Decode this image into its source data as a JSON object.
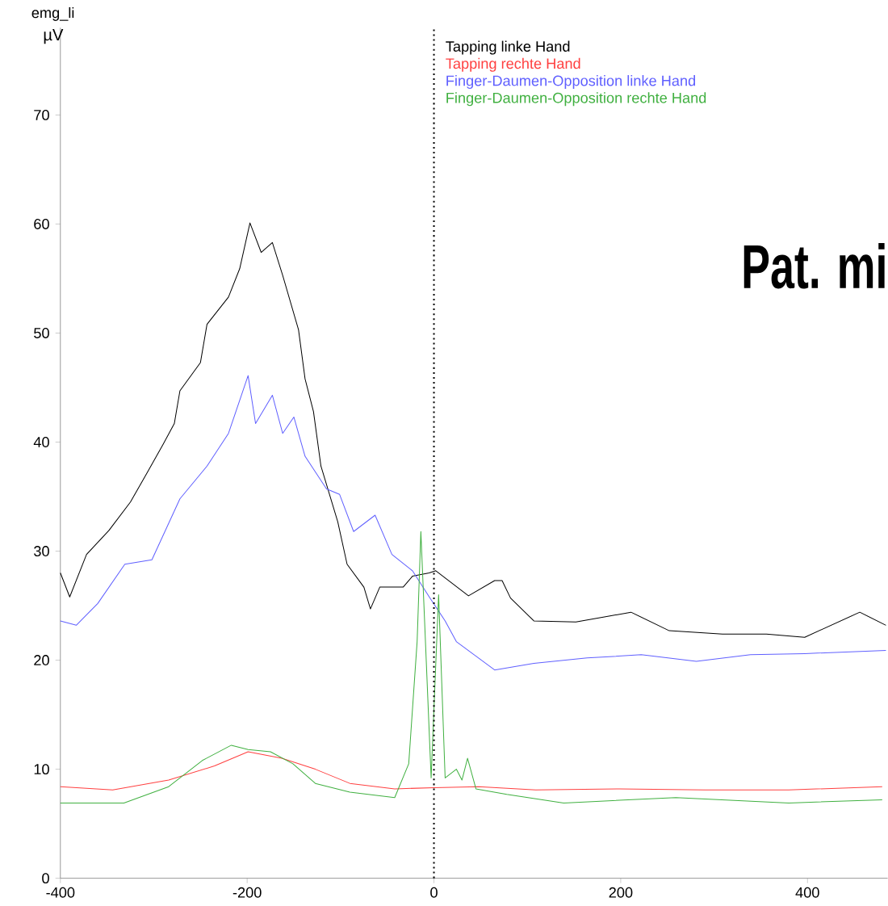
{
  "chart_data": {
    "type": "line",
    "title": "emg_li",
    "ylabel": "µV",
    "xlim": [
      -400,
      486
    ],
    "ylim": [
      0,
      78
    ],
    "xticks": [
      -400,
      -200,
      0,
      200,
      400
    ],
    "yticks": [
      0,
      10,
      20,
      30,
      40,
      50,
      60,
      70
    ],
    "grid": false,
    "legend": "top",
    "marker": "none",
    "line_style": "solid",
    "ref_lines": [
      {
        "axis": "x",
        "value": 0,
        "color": "#000000",
        "line_style": "dotted"
      }
    ],
    "annotations": [
      "Pat. mi"
    ],
    "series": [
      {
        "name": "Tapping linke Hand",
        "color": "#000000",
        "x": [
          -400,
          -390,
          -372,
          -348,
          -325,
          -307,
          -290,
          -278,
          -272,
          -250,
          -243,
          -220,
          -208,
          -197,
          -185,
          -173,
          -162,
          -145,
          -138,
          -129,
          -121,
          -103,
          -93,
          -75,
          -68,
          -58,
          -33,
          -23,
          -5,
          2,
          37,
          65,
          73,
          82,
          107,
          152,
          211,
          252,
          309,
          356,
          397,
          456,
          484
        ],
        "values": [
          28.0,
          25.8,
          29.7,
          31.9,
          34.5,
          37.2,
          39.8,
          41.7,
          44.7,
          47.3,
          50.8,
          53.3,
          55.9,
          60.1,
          57.4,
          58.3,
          55.3,
          50.3,
          45.8,
          42.8,
          37.8,
          32.7,
          28.8,
          26.7,
          24.7,
          26.7,
          26.7,
          27.7,
          28.0,
          28.2,
          25.9,
          27.3,
          27.3,
          25.7,
          23.6,
          23.5,
          24.4,
          22.7,
          22.4,
          22.4,
          22.1,
          24.4,
          23.2
        ]
      },
      {
        "name": "Tapping rechte Hand",
        "color": "#ff4040",
        "x": [
          -400,
          -344,
          -284,
          -235,
          -199,
          -163,
          -127,
          -90,
          -42,
          0,
          48,
          109,
          199,
          290,
          380,
          480
        ],
        "values": [
          8.4,
          8.1,
          9.0,
          10.3,
          11.6,
          11.0,
          10.0,
          8.7,
          8.2,
          8.3,
          8.4,
          8.1,
          8.2,
          8.1,
          8.1,
          8.4
        ]
      },
      {
        "name": "Finger-Daumen-Opposition linke Hand",
        "color": "#6060ff",
        "x": [
          -400,
          -383,
          -360,
          -331,
          -302,
          -272,
          -243,
          -220,
          -199,
          -191,
          -173,
          -162,
          -150,
          -138,
          -115,
          -101,
          -86,
          -63,
          -45,
          -23,
          -5,
          12,
          24,
          65,
          107,
          164,
          222,
          281,
          339,
          397,
          484
        ],
        "values": [
          23.6,
          23.2,
          25.2,
          28.8,
          29.2,
          34.8,
          37.8,
          40.8,
          46.1,
          41.7,
          44.3,
          40.8,
          42.3,
          38.7,
          35.7,
          35.2,
          31.8,
          33.3,
          29.7,
          28.2,
          25.8,
          23.6,
          21.7,
          19.1,
          19.7,
          20.2,
          20.5,
          19.9,
          20.5,
          20.6,
          20.9
        ]
      },
      {
        "name": "Finger-Daumen-Opposition rechte Hand",
        "color": "#40b040",
        "x": [
          -400,
          -332,
          -284,
          -248,
          -217,
          -199,
          -175,
          -151,
          -127,
          -90,
          -42,
          -27,
          -18,
          -14,
          -3,
          5,
          12,
          24,
          30,
          36,
          45,
          78,
          139,
          259,
          380,
          480
        ],
        "values": [
          6.9,
          6.9,
          8.4,
          10.8,
          12.2,
          11.8,
          11.6,
          10.5,
          8.7,
          7.9,
          7.4,
          10.5,
          21.7,
          31.8,
          9.2,
          26.0,
          9.2,
          10.0,
          9.0,
          11.0,
          8.2,
          7.7,
          6.9,
          7.4,
          6.9,
          7.2
        ]
      }
    ]
  }
}
